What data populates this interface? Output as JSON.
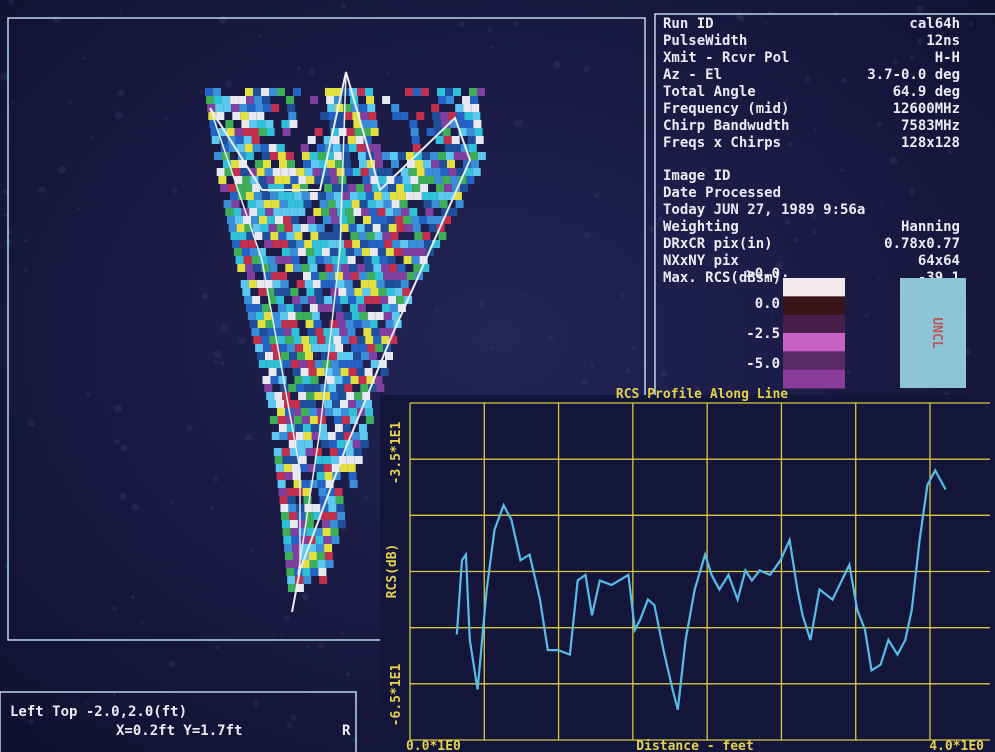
{
  "info_panel": {
    "rows_run": [
      [
        "Run ID",
        "cal64h"
      ],
      [
        "PulseWidth",
        "12ns"
      ],
      [
        "Xmit - Rcvr Pol",
        "H-H"
      ],
      [
        "Az - El",
        "3.7-0.0 deg"
      ],
      [
        "Total Angle",
        "64.9 deg"
      ],
      [
        "Frequency (mid)",
        "12600MHz"
      ],
      [
        "Chirp Bandwudth",
        "7583MHz"
      ],
      [
        "Freqs x Chirps",
        "128x128"
      ]
    ],
    "rows_image": [
      [
        "Image ID"
      ],
      [
        "Date Processed"
      ],
      [
        "Today JUN 27, 1989 9:56a"
      ],
      [
        "Weighting",
        "Hanning"
      ],
      [
        "DRxCR pix(in)",
        "0.78x0.77"
      ],
      [
        "NXxNY pix",
        "64x64"
      ],
      [
        "Max. RCS(dBsm):",
        "-39.1"
      ]
    ],
    "colorbar": {
      "labels": [
        ">0.0",
        "0.0",
        "-2.5",
        "-5.0"
      ],
      "colors": [
        "#f2eaec",
        "#3a1418",
        "#4a1e4a",
        "#c862c4",
        "#5a2a66",
        "#8a3c9a"
      ]
    },
    "classification": "UNCL"
  },
  "cursor_panel": {
    "line1": "Left Top -2.0,2.0(ft)",
    "line2": "X=0.2ft  Y=1.7ft",
    "line3": "R"
  },
  "chart_data": {
    "type": "line",
    "title": "RCS Profile Along Line",
    "x_label": "Distance - feet",
    "y_label": "RCS(dB)",
    "x": [
      0.36,
      0.4,
      0.43,
      0.46,
      0.52,
      0.59,
      0.65,
      0.72,
      0.78,
      0.85,
      0.92,
      1.0,
      1.06,
      1.14,
      1.23,
      1.29,
      1.35,
      1.4,
      1.46,
      1.55,
      1.68,
      1.73,
      1.77,
      1.83,
      1.88,
      1.95,
      2.02,
      2.06,
      2.12,
      2.19,
      2.27,
      2.32,
      2.38,
      2.45,
      2.52,
      2.58,
      2.63,
      2.69,
      2.77,
      2.85,
      2.92,
      2.98,
      3.02,
      3.08,
      3.15,
      3.25,
      3.38,
      3.44,
      3.5,
      3.55,
      3.62,
      3.68,
      3.75,
      3.81,
      3.86,
      3.92,
      3.98,
      4.04,
      4.12
    ],
    "series": [
      {
        "name": "RCS",
        "color": "#56bde6",
        "values": [
          -55.6,
          -49.0,
          -48.5,
          -56.1,
          -60.5,
          -51.6,
          -46.3,
          -44.1,
          -45.4,
          -49.0,
          -48.5,
          -52.5,
          -57.0,
          -57.0,
          -57.4,
          -50.8,
          -50.3,
          -53.9,
          -50.8,
          -51.2,
          -50.3,
          -55.2,
          -54.3,
          -52.5,
          -53.0,
          -57.0,
          -60.5,
          -62.3,
          -56.1,
          -51.6,
          -48.5,
          -50.3,
          -51.6,
          -50.3,
          -52.5,
          -49.9,
          -50.8,
          -49.9,
          -50.3,
          -49.0,
          -47.2,
          -51.6,
          -53.9,
          -56.1,
          -51.6,
          -52.5,
          -49.4,
          -53.4,
          -55.2,
          -58.8,
          -58.3,
          -56.1,
          -57.4,
          -56.1,
          -53.4,
          -47.2,
          -42.3,
          -41.0,
          -42.7
        ]
      }
    ],
    "xlim": [
      0,
      4
    ],
    "xticks": [
      {
        "value": 0,
        "label": "0.0*1E0"
      },
      {
        "value": 4,
        "label": "4.0*1E0"
      }
    ],
    "ylim": [
      -65,
      -35
    ],
    "yticks": [
      {
        "value": -35,
        "label": "-3.5*1E1"
      },
      {
        "value": -65,
        "label": "-6.5*1E1"
      }
    ],
    "grid": true,
    "x_grid_divisions": 7,
    "y_grid_divisions": 6,
    "grid_color": "#d8c840"
  }
}
